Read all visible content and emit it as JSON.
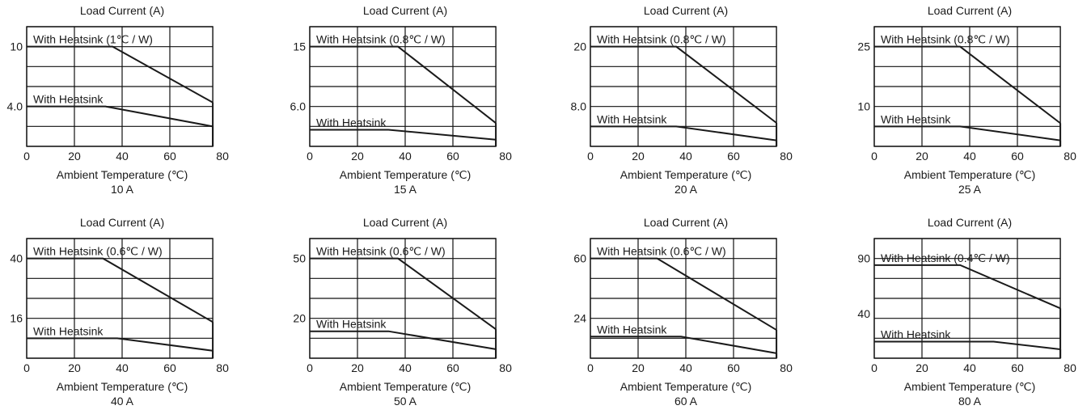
{
  "chart_data": [
    {
      "type": "line",
      "caption": "10 A",
      "ylabel": "Load Current (A)",
      "xlabel": "Ambient Temperature (℃)",
      "xticks": [
        "0",
        "20",
        "40",
        "60",
        "80"
      ],
      "ytick_labels": [
        "10",
        "4.0"
      ],
      "ylim_frac": [
        0,
        1
      ],
      "series": [
        {
          "name": "With Heatsink (1℃ / W)",
          "points": [
            [
              0,
              10
            ],
            [
              36,
              10
            ],
            [
              78,
              4.4
            ]
          ]
        },
        {
          "name": "With Heatsink",
          "points": [
            [
              0,
              4.0
            ],
            [
              33,
              4.0
            ],
            [
              78,
              2.0
            ]
          ]
        }
      ],
      "ymax": 12,
      "yticks": [
        10,
        4.0
      ]
    },
    {
      "type": "line",
      "caption": "15 A",
      "ylabel": "Load Current (A)",
      "xlabel": "Ambient Temperature (℃)",
      "xticks": [
        "0",
        "20",
        "40",
        "60",
        "80"
      ],
      "ytick_labels": [
        "15",
        "6.0"
      ],
      "series": [
        {
          "name": "With Heatsink (0.8℃ / W)",
          "points": [
            [
              0,
              15
            ],
            [
              37,
              15
            ],
            [
              78,
              3.5
            ]
          ]
        },
        {
          "name": "With Heatsink",
          "points": [
            [
              0,
              2.5
            ],
            [
              33,
              2.5
            ],
            [
              78,
              1.0
            ]
          ]
        }
      ],
      "ymax": 18,
      "yticks": [
        15,
        6.0
      ]
    },
    {
      "type": "line",
      "caption": "20 A",
      "ylabel": "Load Current (A)",
      "xlabel": "Ambient Temperature (℃)",
      "xticks": [
        "0",
        "20",
        "40",
        "60",
        "80"
      ],
      "ytick_labels": [
        "20",
        "8.0"
      ],
      "series": [
        {
          "name": "With Heatsink (0.8℃ / W)",
          "points": [
            [
              0,
              20
            ],
            [
              36,
              20
            ],
            [
              78,
              4.7
            ]
          ]
        },
        {
          "name": "With Heatsink",
          "points": [
            [
              0,
              4.0
            ],
            [
              36,
              4.0
            ],
            [
              78,
              1.2
            ]
          ]
        }
      ],
      "ymax": 24,
      "yticks": [
        20,
        8.0
      ]
    },
    {
      "type": "line",
      "caption": "25 A",
      "ylabel": "Load Current (A)",
      "xlabel": "Ambient Temperature (℃)",
      "xticks": [
        "0",
        "20",
        "40",
        "60",
        "80"
      ],
      "ytick_labels": [
        "25",
        "10"
      ],
      "series": [
        {
          "name": "With Heatsink (0.8℃ / W)",
          "points": [
            [
              0,
              25
            ],
            [
              36,
              25
            ],
            [
              78,
              5.8
            ]
          ]
        },
        {
          "name": "With Heatsink",
          "points": [
            [
              0,
              5.0
            ],
            [
              36,
              5.0
            ],
            [
              78,
              1.5
            ]
          ]
        }
      ],
      "ymax": 30,
      "yticks": [
        25,
        10
      ]
    },
    {
      "type": "line",
      "caption": "40 A",
      "ylabel": "Load Current (A)",
      "xlabel": "Ambient Temperature (℃)",
      "xticks": [
        "0",
        "20",
        "40",
        "60",
        "80"
      ],
      "ytick_labels": [
        "40",
        "16"
      ],
      "series": [
        {
          "name": "With Heatsink (0.6℃ / W)",
          "points": [
            [
              0,
              40
            ],
            [
              32,
              40
            ],
            [
              78,
              14.5
            ]
          ]
        },
        {
          "name": "With Heatsink",
          "points": [
            [
              0,
              8.0
            ],
            [
              38,
              8.0
            ],
            [
              78,
              3.0
            ]
          ]
        }
      ],
      "ymax": 48,
      "yticks": [
        40,
        16
      ]
    },
    {
      "type": "line",
      "caption": "50 A",
      "ylabel": "Load Current (A)",
      "xlabel": "Ambient Temperature (℃)",
      "xticks": [
        "0",
        "20",
        "40",
        "60",
        "80"
      ],
      "ytick_labels": [
        "50",
        "20"
      ],
      "series": [
        {
          "name": "With Heatsink (0.6℃ / W)",
          "points": [
            [
              0,
              50
            ],
            [
              37,
              50
            ],
            [
              78,
              14.5
            ]
          ]
        },
        {
          "name": "With Heatsink",
          "points": [
            [
              0,
              13.5
            ],
            [
              33,
              13.5
            ],
            [
              78,
              4.5
            ]
          ]
        }
      ],
      "ymax": 60,
      "yticks": [
        50,
        20
      ]
    },
    {
      "type": "line",
      "caption": "60 A",
      "ylabel": "Load Current (A)",
      "xlabel": "Ambient Temperature (℃)",
      "xticks": [
        "0",
        "20",
        "40",
        "60",
        "80"
      ],
      "ytick_labels": [
        "60",
        "24"
      ],
      "series": [
        {
          "name": "With Heatsink (0.6℃ / W)",
          "points": [
            [
              0,
              60
            ],
            [
              28,
              60
            ],
            [
              78,
              17
            ]
          ]
        },
        {
          "name": "With Heatsink",
          "points": [
            [
              0,
              13
            ],
            [
              38,
              13
            ],
            [
              78,
              3
            ]
          ]
        }
      ],
      "ymax": 72,
      "yticks": [
        60,
        24
      ]
    },
    {
      "type": "line",
      "caption": "80 A",
      "ylabel": "Load Current (A)",
      "xlabel": "Ambient Temperature (℃)",
      "xticks": [
        "0",
        "20",
        "40",
        "60",
        "80"
      ],
      "ytick_labels": [
        "90",
        "40"
      ],
      "series": [
        {
          "name": "With Heatsink (0.4℃ / W)",
          "points": [
            [
              0,
              84
            ],
            [
              36,
              84
            ],
            [
              78,
              45
            ]
          ]
        },
        {
          "name": "With Heatsink",
          "points": [
            [
              0,
              15
            ],
            [
              50,
              15
            ],
            [
              78,
              8
            ]
          ]
        }
      ],
      "ymax": 108,
      "yticks": [
        90,
        40
      ]
    }
  ]
}
